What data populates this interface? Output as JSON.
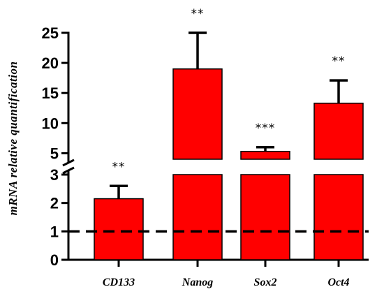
{
  "chart_data": {
    "type": "bar",
    "ylabel": "mRNA relative quantification",
    "categories": [
      "CD133",
      "Nanog",
      "Sox2",
      "Oct4"
    ],
    "values": [
      2.15,
      19.0,
      5.3,
      13.3
    ],
    "errors": [
      0.45,
      6.0,
      0.7,
      3.8
    ],
    "significance": [
      "**",
      "**",
      "***",
      "**"
    ],
    "y_axis_break": {
      "lower_range": [
        0,
        3
      ],
      "upper_range": [
        4,
        25
      ]
    },
    "y_ticks_lower": [
      "0",
      "1",
      "2",
      "3"
    ],
    "y_ticks_upper": [
      "5",
      "10",
      "15",
      "20",
      "25"
    ],
    "reference_line": {
      "y": 1,
      "style": "dashed"
    },
    "bar_color": "#ff0000",
    "grid": false
  }
}
